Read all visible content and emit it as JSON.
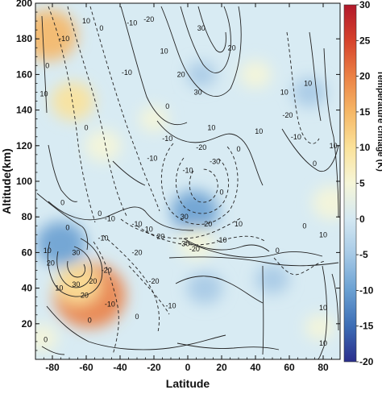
{
  "chart_data": {
    "type": "heatmap",
    "subtype": "filled contour map with overlaid line contours",
    "xlabel": "Latitude",
    "ylabel": "Altitude(km)",
    "colorbar_label": "Temperature chnage (K)",
    "xlim": [
      -90,
      90
    ],
    "ylim": [
      0,
      200
    ],
    "x_ticks": [
      -80,
      -60,
      -40,
      -20,
      0,
      20,
      40,
      60,
      80
    ],
    "y_ticks": [
      20,
      40,
      60,
      80,
      100,
      120,
      140,
      160,
      180,
      200
    ],
    "colorbar_ticks": [
      -20,
      -15,
      -10,
      -5,
      0,
      5,
      10,
      15,
      20,
      25,
      30
    ],
    "colorbar_range": [
      -20,
      30
    ],
    "colormap": [
      "#2a2d8c",
      "#3d6db5",
      "#6aa0d2",
      "#a6c9e6",
      "#d4e8f2",
      "#f6f6d8",
      "#fbe29a",
      "#f6b766",
      "#eb8145",
      "#d6422b",
      "#b2182b"
    ],
    "fill_anomalies": [
      {
        "name": "warm high south",
        "lat": -82,
        "alt": 182,
        "value": 15
      },
      {
        "name": "warm upper south band",
        "lat": -68,
        "alt": 145,
        "value": 9
      },
      {
        "name": "warm south lower thermosphere",
        "lat": -50,
        "alt": 120,
        "value": 6
      },
      {
        "name": "warm middle",
        "lat": -20,
        "alt": 135,
        "value": 3
      },
      {
        "name": "cold polar mesopause",
        "lat": -75,
        "alt": 65,
        "value": -12
      },
      {
        "name": "warm stratopause south",
        "lat": -58,
        "alt": 36,
        "value": 22
      },
      {
        "name": "warm stratopause south halo",
        "lat": -65,
        "alt": 42,
        "value": 10
      },
      {
        "name": "cold equatorial mesopause",
        "lat": 4,
        "alt": 83,
        "value": -11
      },
      {
        "name": "warm mesosphere strip",
        "lat": 5,
        "alt": 65,
        "value": 6
      },
      {
        "name": "cold lower mesosphere",
        "lat": 10,
        "alt": 40,
        "value": -6
      },
      {
        "name": "cold band north",
        "lat": 50,
        "alt": 45,
        "value": -5
      },
      {
        "name": "warm north upper",
        "lat": 40,
        "alt": 160,
        "value": 4
      },
      {
        "name": "warm north mesosphere",
        "lat": 85,
        "alt": 88,
        "value": 7
      },
      {
        "name": "cold north high",
        "lat": 72,
        "alt": 150,
        "value": -5
      },
      {
        "name": "warm south surface",
        "lat": -86,
        "alt": 12,
        "value": 4
      },
      {
        "name": "warm north low",
        "lat": 78,
        "alt": 18,
        "value": 3
      },
      {
        "name": "cold middle upper",
        "lat": 8,
        "alt": 160,
        "value": -3
      }
    ],
    "contour_labels": [
      {
        "text": "-10",
        "lat": -73,
        "alt": 180,
        "dashed": false
      },
      {
        "text": "10",
        "lat": -60,
        "alt": 190,
        "dashed": false
      },
      {
        "text": "0",
        "lat": -51,
        "alt": 186,
        "dashed": true
      },
      {
        "text": "-10",
        "lat": -33,
        "alt": 189,
        "dashed": true
      },
      {
        "text": "-20",
        "lat": -23,
        "alt": 191,
        "dashed": true
      },
      {
        "text": "0",
        "lat": -83,
        "alt": 165,
        "dashed": false
      },
      {
        "text": "10",
        "lat": -85,
        "alt": 149,
        "dashed": false
      },
      {
        "text": "0",
        "lat": -60,
        "alt": 130,
        "dashed": false
      },
      {
        "text": "-10",
        "lat": -36,
        "alt": 161,
        "dashed": true
      },
      {
        "text": "10",
        "lat": -14,
        "alt": 173,
        "dashed": false
      },
      {
        "text": "20",
        "lat": -4,
        "alt": 160,
        "dashed": false
      },
      {
        "text": "30",
        "lat": 6,
        "alt": 150,
        "dashed": false
      },
      {
        "text": "0",
        "lat": -12,
        "alt": 142,
        "dashed": false
      },
      {
        "text": "-10",
        "lat": -21,
        "alt": 113,
        "dashed": true
      },
      {
        "text": "10",
        "lat": 14,
        "alt": 130,
        "dashed": false
      },
      {
        "text": "20",
        "lat": 26,
        "alt": 175,
        "dashed": false
      },
      {
        "text": "30",
        "lat": 8,
        "alt": 186,
        "dashed": false
      },
      {
        "text": "0",
        "lat": 30,
        "alt": 118,
        "dashed": false
      },
      {
        "text": "10",
        "lat": 42,
        "alt": 128,
        "dashed": false
      },
      {
        "text": "-10",
        "lat": -12,
        "alt": 124,
        "dashed": true
      },
      {
        "text": "-20",
        "lat": 8,
        "alt": 119,
        "dashed": true
      },
      {
        "text": "-30",
        "lat": 16,
        "alt": 111,
        "dashed": true
      },
      {
        "text": "-10",
        "lat": 0,
        "alt": 106,
        "dashed": true
      },
      {
        "text": "-20",
        "lat": 59,
        "alt": 137,
        "dashed": true
      },
      {
        "text": "-10",
        "lat": 64,
        "alt": 125,
        "dashed": true
      },
      {
        "text": "10",
        "lat": 57,
        "alt": 150,
        "dashed": false
      },
      {
        "text": "10",
        "lat": 71,
        "alt": 155,
        "dashed": false
      },
      {
        "text": "0",
        "lat": 75,
        "alt": 110,
        "dashed": false
      },
      {
        "text": "10",
        "lat": 86,
        "alt": 120,
        "dashed": false
      },
      {
        "text": "0",
        "lat": -74,
        "alt": 88,
        "dashed": false
      },
      {
        "text": "0",
        "lat": -71,
        "alt": 74,
        "dashed": false
      },
      {
        "text": "0",
        "lat": -52,
        "alt": 82,
        "dashed": false
      },
      {
        "text": "-10",
        "lat": -46,
        "alt": 79,
        "dashed": true
      },
      {
        "text": "-10",
        "lat": -30,
        "alt": 76,
        "dashed": true
      },
      {
        "text": "10",
        "lat": -23,
        "alt": 73,
        "dashed": false
      },
      {
        "text": "20",
        "lat": -16,
        "alt": 69,
        "dashed": false
      },
      {
        "text": "30",
        "lat": -2,
        "alt": 80,
        "dashed": false
      },
      {
        "text": "20",
        "lat": 12,
        "alt": 76,
        "dashed": false
      },
      {
        "text": "0",
        "lat": 20,
        "alt": 94,
        "dashed": false
      },
      {
        "text": "10",
        "lat": 30,
        "alt": 76,
        "dashed": false
      },
      {
        "text": "-30",
        "lat": -2,
        "alt": 65,
        "dashed": true
      },
      {
        "text": "-20",
        "lat": 4,
        "alt": 62,
        "dashed": true
      },
      {
        "text": "-10",
        "lat": 20,
        "alt": 67,
        "dashed": true
      },
      {
        "text": "-10",
        "lat": -50,
        "alt": 68,
        "dashed": true
      },
      {
        "text": "10",
        "lat": -83,
        "alt": 61,
        "dashed": false
      },
      {
        "text": "20",
        "lat": -81,
        "alt": 54,
        "dashed": false
      },
      {
        "text": "30",
        "lat": -66,
        "alt": 60,
        "dashed": false
      },
      {
        "text": "20",
        "lat": -56,
        "alt": 44,
        "dashed": false
      },
      {
        "text": "30",
        "lat": -66,
        "alt": 42,
        "dashed": false
      },
      {
        "text": "20",
        "lat": -61,
        "alt": 36,
        "dashed": false
      },
      {
        "text": "10",
        "lat": -76,
        "alt": 40,
        "dashed": false
      },
      {
        "text": "-20",
        "lat": -48,
        "alt": 50,
        "dashed": true
      },
      {
        "text": "-10",
        "lat": -46,
        "alt": 31,
        "dashed": true
      },
      {
        "text": "-20",
        "lat": -30,
        "alt": 60,
        "dashed": true
      },
      {
        "text": "-20",
        "lat": -20,
        "alt": 44,
        "dashed": true
      },
      {
        "text": "-10",
        "lat": -10,
        "alt": 30,
        "dashed": true
      },
      {
        "text": "0",
        "lat": -30,
        "alt": 24,
        "dashed": false
      },
      {
        "text": "0",
        "lat": 53,
        "alt": 61,
        "dashed": false
      },
      {
        "text": "10",
        "lat": 80,
        "alt": 70,
        "dashed": false
      },
      {
        "text": "0",
        "lat": 69,
        "alt": 75,
        "dashed": false
      },
      {
        "text": "0",
        "lat": -58,
        "alt": 22,
        "dashed": false
      },
      {
        "text": "0",
        "lat": -84,
        "alt": 11,
        "dashed": false
      },
      {
        "text": "10",
        "lat": 80,
        "alt": 9,
        "dashed": false
      },
      {
        "text": "10",
        "lat": 80,
        "alt": 29,
        "dashed": false
      }
    ]
  }
}
